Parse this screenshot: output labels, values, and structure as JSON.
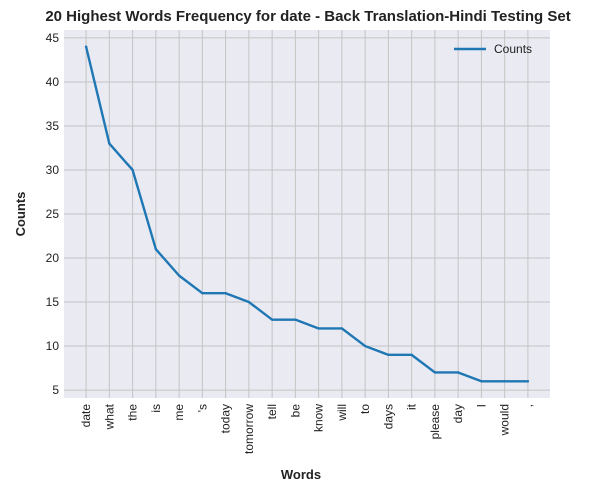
{
  "chart_data": {
    "type": "line",
    "title": "20 Highest Words Frequency for date - Back Translation-Hindi Testing Set",
    "xlabel": "Words",
    "ylabel": "Counts",
    "categories": [
      "date",
      "what",
      "the",
      "is",
      "me",
      "'s",
      "today",
      "tomorrow",
      "tell",
      "be",
      "know",
      "will",
      "to",
      "days",
      "it",
      "please",
      "day",
      "I",
      "would",
      ","
    ],
    "series": [
      {
        "name": "Counts",
        "values": [
          44,
          33,
          30,
          21,
          18,
          16,
          16,
          15,
          13,
          13,
          12,
          12,
          10,
          9,
          9,
          7,
          7,
          6,
          6,
          6
        ]
      }
    ],
    "ylim": [
      4.1,
      45.9
    ],
    "yticks": [
      5,
      10,
      15,
      20,
      25,
      30,
      35,
      40,
      45
    ],
    "grid": true,
    "legend_position": "top-right",
    "colors": {
      "line": "#1f77b4",
      "plot_background": "#eaeaf2",
      "grid": "#c4c4c4"
    }
  }
}
